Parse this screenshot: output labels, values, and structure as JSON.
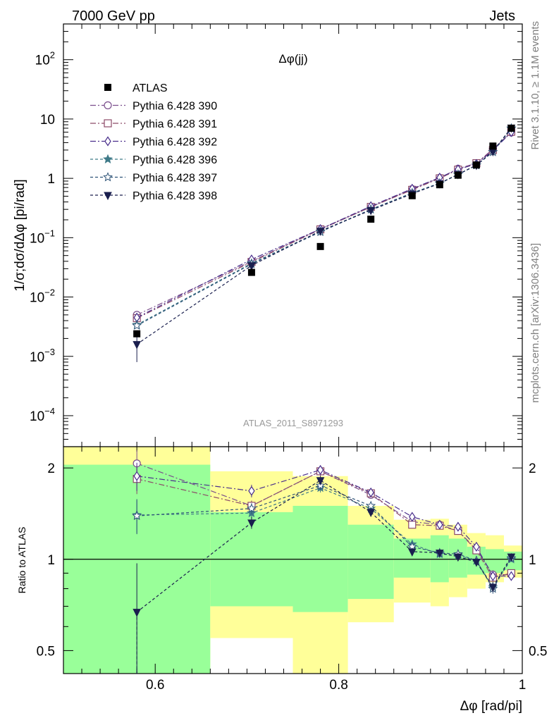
{
  "header": {
    "left": "7000 GeV pp",
    "right": "Jets",
    "plot_label": "Δφ(jj)",
    "analysis_id": "ATLAS_2011_S8971293",
    "side_top": "Rivet 3.1.10, ≥ 1.1M events",
    "side_bottom": "mcplots.cern.ch [arXiv:1306.3436]"
  },
  "axes": {
    "main_ylabel": "1/σ;dσ/dΔφ [pi/rad]",
    "ratio_ylabel": "Ratio to ATLAS",
    "xlabel": "Δφ [rad/pi]"
  },
  "main_ticks": [
    {
      "label": "10",
      "exp": "2",
      "v": 100
    },
    {
      "label": "10",
      "exp": "",
      "v": 10
    },
    {
      "label": "1",
      "exp": "",
      "v": 1
    },
    {
      "label": "10",
      "exp": "−1",
      "v": 0.1
    },
    {
      "label": "10",
      "exp": "−2",
      "v": 0.01
    },
    {
      "label": "10",
      "exp": "−3",
      "v": 0.001
    },
    {
      "label": "10",
      "exp": "−4",
      "v": 0.0001
    }
  ],
  "ratio_ticks": [
    {
      "label": "2",
      "v": 2
    },
    {
      "label": "1",
      "v": 1
    },
    {
      "label": "0.5",
      "v": 0.5
    }
  ],
  "x_ticks": [
    {
      "label": "0.6",
      "v": 0.6
    },
    {
      "label": "0.8",
      "v": 0.8
    },
    {
      "label": "1",
      "v": 1
    }
  ],
  "chart_data": {
    "type": "scatter",
    "xlim": [
      0.5,
      1.0
    ],
    "ylim": [
      3e-05,
      400
    ],
    "yscale": "log",
    "ratio_ylim": [
      0.42,
      2.35
    ],
    "ratio_yscale": "log",
    "x": [
      0.58,
      0.705,
      0.78,
      0.835,
      0.88,
      0.91,
      0.93,
      0.95,
      0.968,
      0.988
    ],
    "atlas": {
      "name": "ATLAS",
      "values": [
        0.0024,
        0.026,
        0.071,
        0.205,
        0.51,
        0.78,
        1.13,
        1.68,
        3.5,
        7.0
      ],
      "color": "#000000"
    },
    "series": [
      {
        "name": "Pythia 6.428 390",
        "marker": "circle",
        "dash": "8,3,2,3",
        "color": "#7a4e8c",
        "values": [
          0.005,
          0.04,
          0.14,
          0.33,
          0.66,
          1.02,
          1.45,
          1.8,
          3.1,
          5.9
        ],
        "ratio": [
          2.07,
          1.5,
          1.95,
          1.63,
          1.33,
          1.3,
          1.24,
          1.08,
          0.89,
          0.89
        ],
        "ratio_err": [
          0.22,
          0.06,
          0.07,
          0.04,
          0.03,
          0.03,
          0.03,
          0.03,
          0.03,
          0.02
        ]
      },
      {
        "name": "Pythia 6.428 391",
        "marker": "square",
        "dash": "8,3,2,3",
        "color": "#8c4a68",
        "values": [
          0.0044,
          0.039,
          0.138,
          0.33,
          0.64,
          1.0,
          1.4,
          1.8,
          3.0,
          6.1
        ],
        "ratio": [
          1.84,
          1.5,
          1.95,
          1.65,
          1.3,
          1.29,
          1.24,
          1.07,
          0.87,
          0.9
        ],
        "ratio_err": [
          0.2,
          0.06,
          0.07,
          0.04,
          0.03,
          0.03,
          0.03,
          0.03,
          0.03,
          0.02
        ]
      },
      {
        "name": "Pythia 6.428 392",
        "marker": "diamond",
        "dash": "8,3,2,3",
        "color": "#4a2f8c",
        "values": [
          0.0045,
          0.043,
          0.14,
          0.34,
          0.67,
          1.03,
          1.42,
          1.75,
          2.95,
          6.0
        ],
        "ratio": [
          1.88,
          1.68,
          1.97,
          1.66,
          1.38,
          1.3,
          1.28,
          1.1,
          0.88,
          0.88
        ],
        "ratio_err": [
          0.2,
          0.08,
          0.07,
          0.04,
          0.03,
          0.03,
          0.03,
          0.03,
          0.03,
          0.02
        ]
      },
      {
        "name": "Pythia 6.428 396",
        "marker": "star",
        "dash": "4,3",
        "color": "#3f7a88",
        "values": [
          0.0034,
          0.037,
          0.128,
          0.3,
          0.57,
          0.83,
          1.17,
          1.67,
          2.8,
          6.9
        ],
        "ratio": [
          1.4,
          1.42,
          1.72,
          1.47,
          1.12,
          1.04,
          1.03,
          0.99,
          0.81,
          1.0
        ],
        "ratio_err": [
          0.18,
          0.06,
          0.06,
          0.04,
          0.03,
          0.03,
          0.03,
          0.03,
          0.03,
          0.02
        ]
      },
      {
        "name": "Pythia 6.428 397",
        "marker": "star-open",
        "dash": "4,3",
        "color": "#2f5478",
        "values": [
          0.0033,
          0.036,
          0.125,
          0.3,
          0.56,
          0.82,
          1.16,
          1.66,
          2.78,
          7.0
        ],
        "ratio": [
          1.39,
          1.47,
          1.75,
          1.5,
          1.1,
          1.05,
          1.04,
          0.99,
          0.8,
          1.01
        ],
        "ratio_err": [
          0.18,
          0.06,
          0.06,
          0.04,
          0.03,
          0.03,
          0.03,
          0.03,
          0.03,
          0.02
        ]
      },
      {
        "name": "Pythia 6.428 398",
        "marker": "tri-down",
        "dash": "4,3",
        "color": "#1a1f4e",
        "values": [
          0.0016,
          0.034,
          0.13,
          0.29,
          0.55,
          0.82,
          1.17,
          1.67,
          2.85,
          7.1
        ],
        "ratio": [
          0.67,
          1.32,
          1.82,
          1.43,
          1.06,
          1.05,
          1.02,
          0.98,
          0.81,
          1.02
        ],
        "ratio_err": [
          0.3,
          0.06,
          0.06,
          0.04,
          0.03,
          0.03,
          0.03,
          0.03,
          0.03,
          0.02
        ]
      }
    ],
    "bands": [
      {
        "x0": 0.5,
        "x1": 0.66,
        "yellow": [
          0.42,
          2.35
        ],
        "green": [
          0.42,
          2.05
        ]
      },
      {
        "x0": 0.66,
        "x1": 0.75,
        "yellow": [
          0.55,
          1.95
        ],
        "green": [
          0.7,
          1.43
        ]
      },
      {
        "x0": 0.75,
        "x1": 0.81,
        "yellow": [
          0.42,
          1.88
        ],
        "green": [
          0.67,
          1.5
        ]
      },
      {
        "x0": 0.81,
        "x1": 0.86,
        "yellow": [
          0.62,
          1.5
        ],
        "green": [
          0.74,
          1.3
        ]
      },
      {
        "x0": 0.86,
        "x1": 0.9,
        "yellow": [
          0.72,
          1.35
        ],
        "green": [
          0.87,
          1.17
        ]
      },
      {
        "x0": 0.9,
        "x1": 0.92,
        "yellow": [
          0.7,
          1.36
        ],
        "green": [
          0.84,
          1.2
        ]
      },
      {
        "x0": 0.92,
        "x1": 0.94,
        "yellow": [
          0.75,
          1.3
        ],
        "green": [
          0.87,
          1.17
        ]
      },
      {
        "x0": 0.94,
        "x1": 0.96,
        "yellow": [
          0.8,
          1.22
        ],
        "green": [
          0.89,
          1.1
        ]
      },
      {
        "x0": 0.96,
        "x1": 0.98,
        "yellow": [
          0.84,
          1.2
        ],
        "green": [
          0.9,
          1.08
        ]
      },
      {
        "x0": 0.98,
        "x1": 1.0,
        "yellow": [
          0.87,
          1.11
        ],
        "green": [
          0.92,
          1.06
        ]
      }
    ],
    "legend_position": "top-left",
    "grid": false
  }
}
